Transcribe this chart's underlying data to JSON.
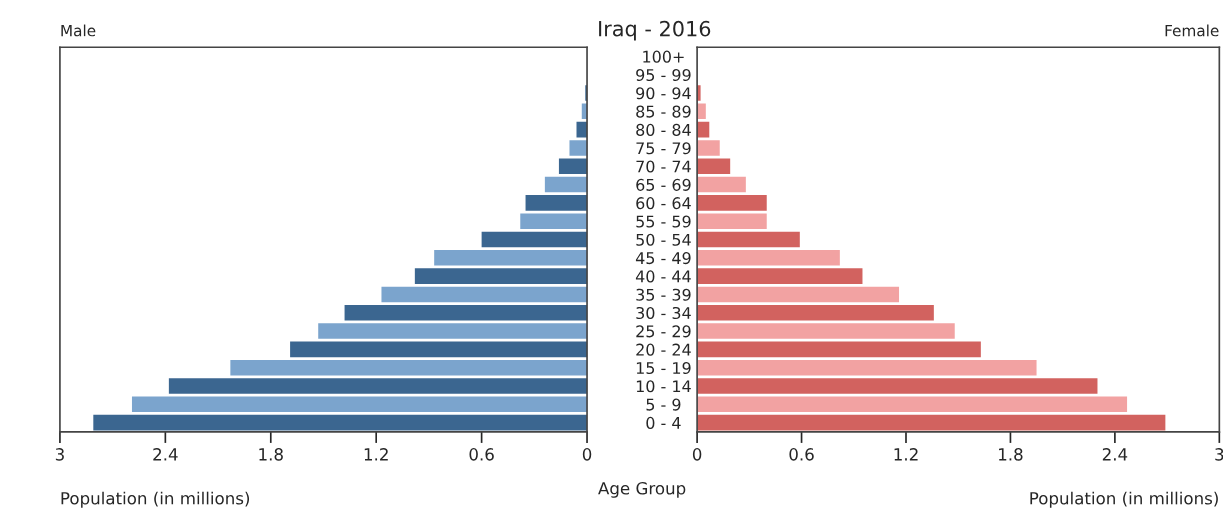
{
  "chart_data": [
    {
      "type": "bar",
      "orientation": "horizontal",
      "title": "Male",
      "xlabel": "Population (in millions)",
      "annotations": [
        "Iraq - 2016",
        "Age Group"
      ],
      "categories": [
        "100+",
        "95 - 99",
        "90 - 94",
        "85 - 89",
        "80 - 84",
        "75 - 79",
        "70 - 74",
        "65 - 69",
        "60 - 64",
        "55 - 59",
        "50 - 54",
        "45 - 49",
        "40 - 44",
        "35 - 39",
        "30 - 34",
        "25 - 29",
        "20 - 24",
        "15 - 19",
        "10 - 14",
        "5 - 9",
        "0 - 4"
      ],
      "series": [
        {
          "values": [
            null,
            null,
            0.01,
            0.03,
            0.06,
            0.1,
            0.16,
            0.24,
            0.35,
            0.38,
            0.6,
            0.87,
            0.98,
            1.17,
            1.38,
            1.53,
            1.69,
            2.03,
            2.38,
            2.59,
            2.81
          ],
          "colors": [
            "#3b6690",
            "#7ba4cd",
            "#3b6690",
            "#7ba4cd",
            "#3b6690",
            "#7ba4cd",
            "#3b6690",
            "#7ba4cd",
            "#3b6690",
            "#7ba4cd",
            "#3b6690",
            "#7ba4cd",
            "#3b6690",
            "#7ba4cd",
            "#3b6690",
            "#7ba4cd",
            "#3b6690",
            "#7ba4cd",
            "#3b6690",
            "#7ba4cd",
            "#3b6690"
          ]
        }
      ],
      "xlim": [
        3,
        0
      ],
      "xticks": [
        3,
        2.4,
        1.8,
        1.2,
        0.6,
        0
      ]
    },
    {
      "type": "bar",
      "orientation": "horizontal",
      "title": "Female",
      "xlabel": "Population (in millions)",
      "tick_labels": "x",
      "categories": [
        null,
        null,
        null,
        null,
        null,
        null,
        null,
        null,
        null,
        null,
        null,
        null,
        null,
        null,
        null,
        null,
        null,
        null,
        null,
        null,
        null
      ],
      "series": [
        {
          "values": [
            null,
            null,
            0.02,
            0.05,
            0.07,
            0.13,
            0.19,
            0.28,
            0.4,
            0.4,
            0.59,
            0.82,
            0.95,
            1.16,
            1.36,
            1.48,
            1.63,
            1.95,
            2.3,
            2.47,
            2.69
          ],
          "colors": [
            "#d2625f",
            "#f2a2a2",
            "#d2625f",
            "#f2a2a2",
            "#d2625f",
            "#f2a2a2",
            "#d2625f",
            "#f2a2a2",
            "#d2625f",
            "#f2a2a2",
            "#d2625f",
            "#f2a2a2",
            "#d2625f",
            "#f2a2a2",
            "#d2625f",
            "#f2a2a2",
            "#d2625f",
            "#f2a2a2",
            "#d2625f",
            "#f2a2a2",
            "#d2625f"
          ]
        }
      ],
      "xlim": [
        0,
        3
      ],
      "xticks": [
        0,
        0.6,
        1.2,
        1.8,
        2.4,
        3
      ]
    }
  ]
}
